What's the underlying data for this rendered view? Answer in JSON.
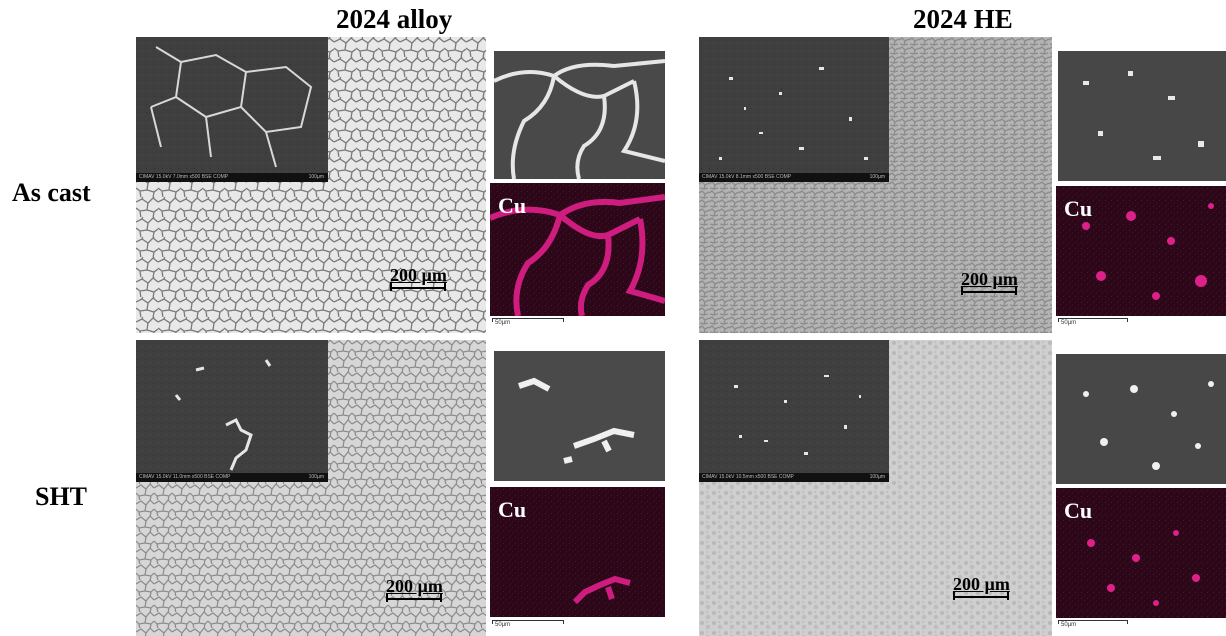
{
  "columns": [
    {
      "title": "2024 alloy"
    },
    {
      "title": "2024 HE"
    }
  ],
  "rows": [
    {
      "label": "As cast"
    },
    {
      "label": "SHT"
    }
  ],
  "panels": {
    "alloy_ascast": {
      "scale": "200 µm",
      "sem_bar": "CIMAV 15.0kV 7.0mm x500 BSE COMP",
      "sem_bar_right": "100µm",
      "edx_label": "Cu",
      "edx_scale": "50µm"
    },
    "he_ascast": {
      "scale": "200 µm",
      "sem_bar": "CIMAV 15.0kV 8.1mm x500 BSE COMP",
      "sem_bar_right": "100µm",
      "edx_label": "Cu",
      "edx_scale": "50µm"
    },
    "alloy_sht": {
      "scale": "200 µm",
      "sem_bar": "CIMAV 15.0kV 11.0mm x500 BSE COMP",
      "sem_bar_right": "100µm",
      "edx_label": "Cu",
      "edx_scale": "50µm"
    },
    "he_sht": {
      "scale": "200 µm",
      "sem_bar": "CIMAV 15.0kV 10.5mm x500 BSE COMP",
      "sem_bar_right": "100µm",
      "edx_label": "Cu",
      "edx_scale": "50µm"
    }
  },
  "colors": {
    "cu_map": "#e0208a",
    "edx_bg": "#2a0515"
  }
}
